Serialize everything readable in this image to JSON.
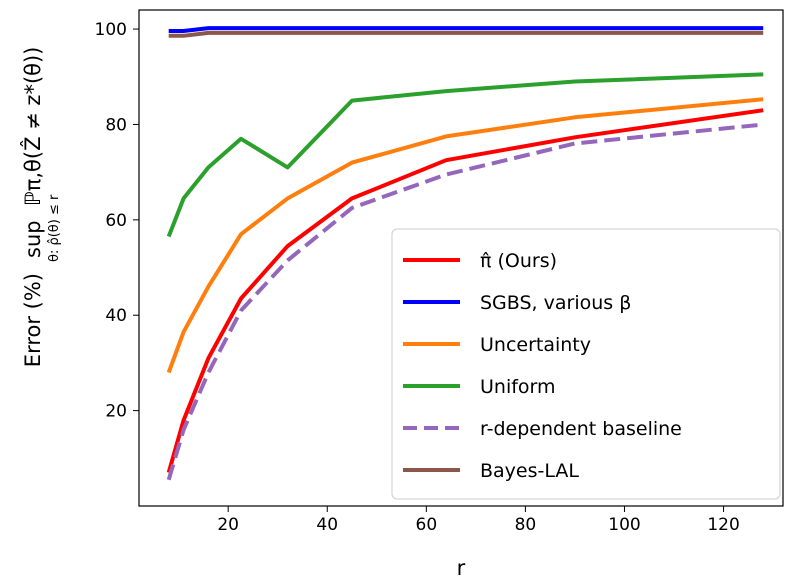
{
  "chart_data": {
    "type": "line",
    "xlabel": "r",
    "ylabel": {
      "prefix": "Error (%)",
      "sup": "sup",
      "sub": "θ: ρ̂(θ) ≤ r",
      "expr": "ℙπ,θ(Ẑ ≠ z*(θ))"
    },
    "xlim": [
      2,
      132
    ],
    "ylim": [
      0,
      104
    ],
    "xticks": [
      20,
      40,
      60,
      80,
      100,
      120
    ],
    "yticks": [
      20,
      40,
      60,
      80,
      100
    ],
    "grid": false,
    "legend_position": "lower-right",
    "series": [
      {
        "name": "π̂ (Ours)",
        "color": "#ff0000",
        "dash": "solid",
        "x": [
          8,
          11,
          16,
          22.6,
          32,
          45,
          64,
          90,
          128
        ],
        "y": [
          7,
          18,
          31,
          43.5,
          54.5,
          64.5,
          72.5,
          77.3,
          83
        ]
      },
      {
        "name": "SGBS, various β",
        "color": "#0000ff",
        "dash": "solid",
        "x": [
          8,
          11,
          16,
          22.6,
          32,
          45,
          64,
          90,
          128
        ],
        "y": [
          99.6,
          99.6,
          100.2,
          100.2,
          100.2,
          100.2,
          100.2,
          100.2,
          100.2
        ]
      },
      {
        "name": "Uncertainty",
        "color": "#ff7f0e",
        "dash": "solid",
        "x": [
          8,
          11,
          16,
          22.6,
          32,
          45,
          64,
          90,
          128
        ],
        "y": [
          28,
          36.5,
          46,
          57,
          64.5,
          72,
          77.5,
          81.5,
          85.3
        ]
      },
      {
        "name": "Uniform",
        "color": "#2ca02c",
        "dash": "solid",
        "x": [
          8,
          11,
          16,
          22.6,
          32,
          45,
          64,
          90,
          128
        ],
        "y": [
          56.5,
          64.5,
          71,
          77,
          71,
          85,
          87,
          89,
          90.5
        ]
      },
      {
        "name": "r-dependent baseline",
        "color": "#9467bd",
        "dash": "dashed",
        "x": [
          8,
          11,
          16,
          22.6,
          32,
          45,
          64,
          90,
          128
        ],
        "y": [
          5.5,
          16,
          28,
          41,
          51.5,
          62.5,
          69.5,
          76,
          80
        ]
      },
      {
        "name": "Bayes-LAL",
        "color": "#8c564b",
        "dash": "solid",
        "x": [
          8,
          11,
          16,
          22.6,
          32,
          45,
          64,
          90,
          128
        ],
        "y": [
          98.6,
          98.6,
          99.2,
          99.2,
          99.2,
          99.2,
          99.2,
          99.2,
          99.2
        ]
      }
    ]
  }
}
